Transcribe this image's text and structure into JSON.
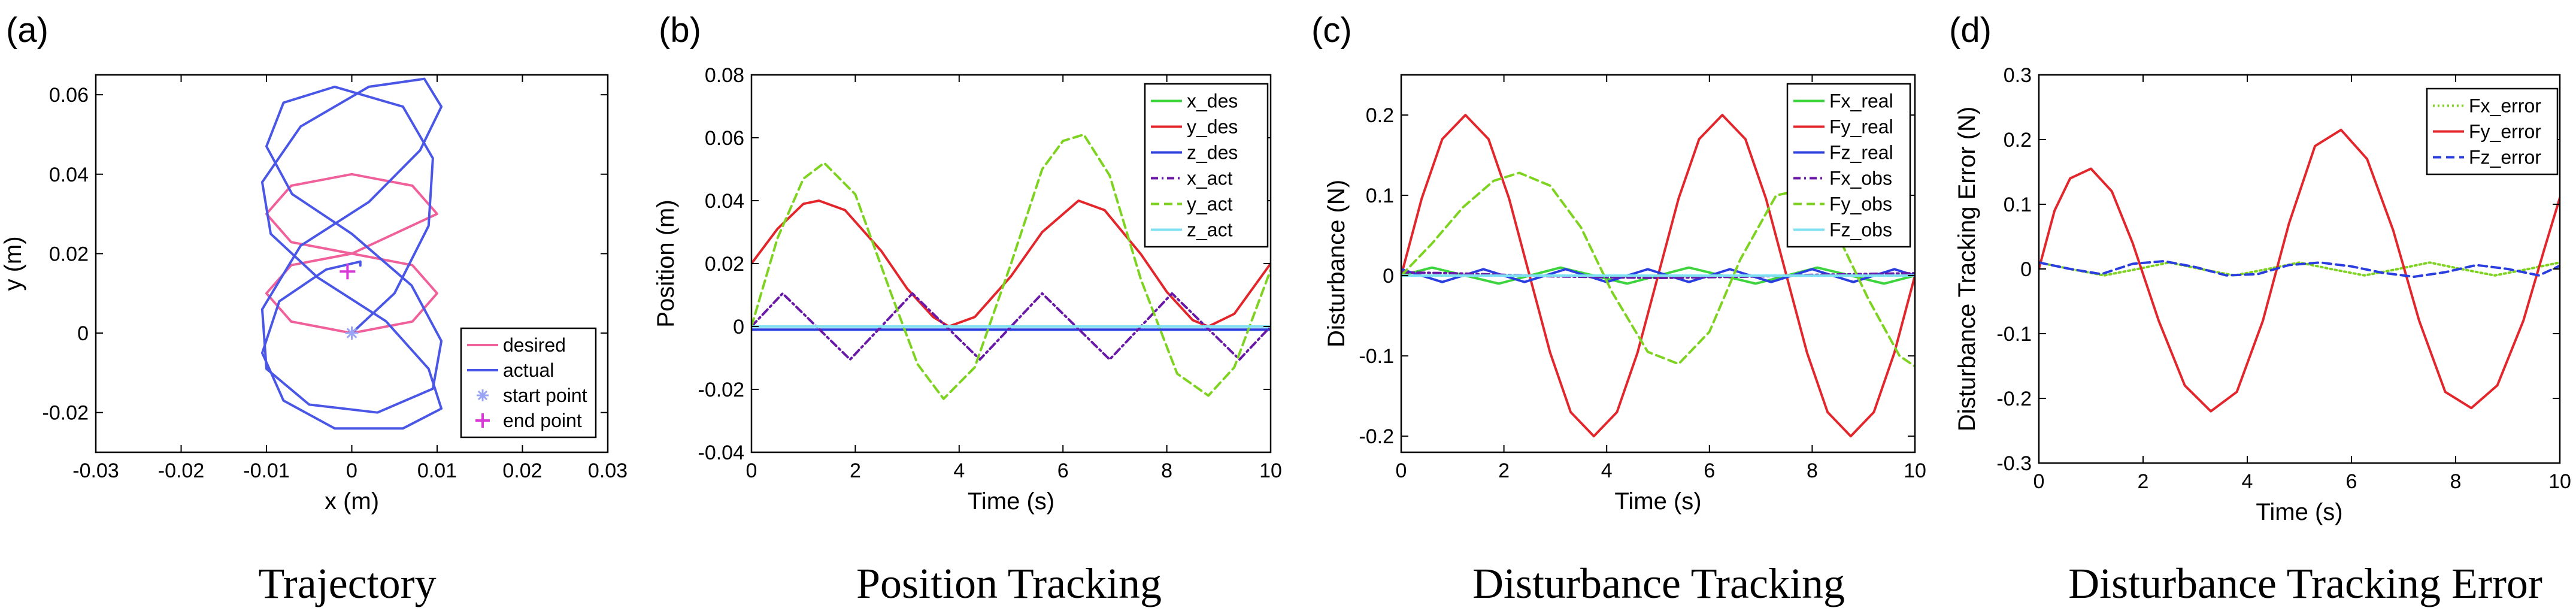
{
  "chart_data": [
    {
      "panel_label": "(a)",
      "caption": "Trajectory",
      "type": "line",
      "xlabel": "x (m)",
      "ylabel": "y (m)",
      "xlim": [
        -0.03,
        0.03
      ],
      "ylim": [
        -0.03,
        0.065
      ],
      "xticks": [
        -0.03,
        -0.02,
        -0.01,
        0,
        0.01,
        0.02,
        0.03
      ],
      "xtick_labels": [
        "-0.03",
        "-0.02",
        "-0.01",
        "0",
        "0.01",
        "0.02",
        "0.03"
      ],
      "yticks": [
        -0.02,
        0,
        0.02,
        0.04,
        0.06
      ],
      "ytick_labels": [
        "-0.02",
        "0",
        "0.02",
        "0.04",
        "0.06"
      ],
      "legend_position": "bottom-right",
      "series": [
        {
          "name": "desired",
          "color": "#f0609a",
          "style": "solid",
          "kind": "line",
          "x": [
            0,
            0.0071,
            0.01,
            0.0071,
            0,
            -0.0071,
            -0.01,
            -0.0071,
            0,
            0.0071,
            0.01,
            0.0071,
            0,
            -0.0071,
            -0.01,
            -0.0071,
            0
          ],
          "y": [
            0.02,
            0.0271,
            0.03,
            0.0371,
            0.04,
            0.0371,
            0.03,
            0.0229,
            0.02,
            0.0171,
            0.01,
            0.0029,
            0,
            0.0029,
            0.01,
            0.0171,
            0.02
          ]
        },
        {
          "name": "actual",
          "color": "#4a57e6",
          "style": "solid",
          "kind": "line",
          "x": [
            0,
            0.005,
            0.009,
            0.0095,
            0.006,
            -0.002,
            -0.008,
            -0.01,
            -0.007,
            0.0,
            0.007,
            0.0105,
            0.0095,
            0.003,
            -0.005,
            -0.01,
            -0.0105,
            -0.006,
            0.002,
            0.008,
            0.0105,
            0.0085,
            0.002,
            -0.006,
            -0.0105,
            -0.0095,
            -0.004,
            0.004,
            0.009,
            0.0105,
            0.006,
            -0.002,
            -0.008,
            -0.0105,
            -0.0085,
            -0.003,
            0.001,
            0.001
          ],
          "y": [
            0,
            0.01,
            0.027,
            0.044,
            0.057,
            0.062,
            0.058,
            0.047,
            0.035,
            0.025,
            0.012,
            -0.002,
            -0.014,
            -0.02,
            -0.018,
            -0.009,
            0.006,
            0.022,
            0.033,
            0.046,
            0.057,
            0.064,
            0.062,
            0.052,
            0.038,
            0.025,
            0.014,
            0.003,
            -0.009,
            -0.019,
            -0.024,
            -0.024,
            -0.017,
            -0.005,
            0.008,
            0.016,
            0.018,
            0.017
          ]
        },
        {
          "name": "start point",
          "color": "#9aa4f5",
          "kind": "marker",
          "marker": "asterisk",
          "x": [
            0
          ],
          "y": [
            0
          ]
        },
        {
          "name": "end point",
          "color": "#d83ad8",
          "kind": "marker",
          "marker": "plus",
          "x": [
            -0.0005
          ],
          "y": [
            0.0155
          ]
        }
      ]
    },
    {
      "panel_label": "(b)",
      "caption": "Position Tracking",
      "type": "line",
      "xlabel": "Time (s)",
      "ylabel": "Position (m)",
      "xlim": [
        0,
        10
      ],
      "ylim": [
        -0.04,
        0.08
      ],
      "xticks": [
        0,
        2,
        4,
        6,
        8,
        10
      ],
      "xtick_labels": [
        "0",
        "2",
        "4",
        "6",
        "8",
        "10"
      ],
      "yticks": [
        -0.04,
        -0.02,
        0,
        0.02,
        0.04,
        0.06,
        0.08
      ],
      "ytick_labels": [
        "-0.04",
        "-0.02",
        "0",
        "0.02",
        "0.04",
        "0.06",
        "0.08"
      ],
      "legend_position": "top-right",
      "series": [
        {
          "name": "x_des",
          "color": "#3dd43d",
          "style": "solid",
          "x": [
            0,
            0.8,
            1.6,
            2.4,
            3.2,
            4.0,
            4.8,
            5.6,
            6.4,
            7.2,
            8.0,
            8.8,
            9.6,
            10
          ],
          "y": [
            0,
            0,
            0,
            0,
            0,
            0,
            0,
            0,
            0,
            0,
            0,
            0,
            0,
            0
          ]
        },
        {
          "name": "y_des",
          "color": "#e3262b",
          "style": "solid",
          "x": [
            0,
            0.5,
            1.0,
            1.3,
            1.8,
            2.5,
            3.0,
            3.5,
            3.8,
            4.3,
            5.0,
            5.6,
            6.3,
            6.8,
            7.5,
            8.0,
            8.5,
            8.8,
            9.3,
            10
          ],
          "y": [
            0.02,
            0.031,
            0.039,
            0.04,
            0.037,
            0.024,
            0.012,
            0.003,
            0.0,
            0.003,
            0.016,
            0.03,
            0.04,
            0.037,
            0.023,
            0.011,
            0.002,
            0.0,
            0.004,
            0.02
          ]
        },
        {
          "name": "z_des",
          "color": "#2a3ee0",
          "style": "solid",
          "x": [
            0,
            1,
            2,
            3,
            4,
            5,
            6,
            7,
            8,
            9,
            10
          ],
          "y": [
            -0.001,
            -0.001,
            -0.001,
            -0.001,
            -0.001,
            -0.001,
            -0.001,
            -0.001,
            -0.001,
            -0.001,
            -0.001
          ]
        },
        {
          "name": "x_act",
          "color": "#6a18a8",
          "style": "dashdot",
          "x": [
            0,
            0.6,
            1.25,
            1.9,
            2.5,
            3.1,
            3.75,
            4.4,
            5.0,
            5.6,
            6.25,
            6.9,
            7.5,
            8.1,
            8.75,
            9.4,
            10
          ],
          "y": [
            0,
            0.0105,
            0,
            -0.0105,
            0,
            0.0105,
            0,
            -0.0105,
            0,
            0.0105,
            0,
            -0.0105,
            0,
            0.0105,
            0,
            -0.0105,
            0
          ]
        },
        {
          "name": "y_act",
          "color": "#7ed321",
          "style": "dashed",
          "x": [
            0,
            0.5,
            1.0,
            1.4,
            2.0,
            2.7,
            3.2,
            3.7,
            4.3,
            5.0,
            5.6,
            6.0,
            6.4,
            6.9,
            7.5,
            8.2,
            8.8,
            9.3,
            10
          ],
          "y": [
            0,
            0.028,
            0.047,
            0.052,
            0.042,
            0.01,
            -0.012,
            -0.023,
            -0.013,
            0.02,
            0.05,
            0.059,
            0.061,
            0.048,
            0.015,
            -0.015,
            -0.022,
            -0.013,
            0.018
          ]
        },
        {
          "name": "z_act",
          "color": "#7fe0f2",
          "style": "solid",
          "x": [
            0,
            1,
            2,
            3,
            4,
            5,
            6,
            7,
            8,
            9,
            10
          ],
          "y": [
            0,
            0,
            0,
            0,
            0,
            0,
            0,
            0,
            0,
            0,
            0
          ]
        }
      ]
    },
    {
      "panel_label": "(c)",
      "caption": "Disturbance Tracking",
      "type": "line",
      "xlabel": "Time (s)",
      "ylabel": "Disturbance (N)",
      "xlim": [
        0,
        10
      ],
      "ylim": [
        -0.22,
        0.25
      ],
      "xticks": [
        0,
        2,
        4,
        6,
        8,
        10
      ],
      "xtick_labels": [
        "0",
        "2",
        "4",
        "6",
        "8",
        "10"
      ],
      "yticks": [
        -0.2,
        -0.1,
        0,
        0.1,
        0.2
      ],
      "ytick_labels": [
        "-0.2",
        "-0.1",
        "0",
        "0.1",
        "0.2"
      ],
      "legend_position": "top-right",
      "series": [
        {
          "name": "Fx_real",
          "color": "#3dd43d",
          "style": "solid",
          "x": [
            0,
            0.6,
            1.25,
            1.9,
            2.5,
            3.1,
            3.75,
            4.4,
            5.0,
            5.6,
            6.25,
            6.9,
            7.5,
            8.1,
            8.75,
            9.4,
            10
          ],
          "y": [
            0,
            0.01,
            0,
            -0.01,
            0,
            0.01,
            0,
            -0.01,
            0,
            0.01,
            0,
            -0.01,
            0,
            0.01,
            0,
            -0.01,
            0
          ]
        },
        {
          "name": "Fy_real",
          "color": "#e3262b",
          "style": "solid",
          "x": [
            0,
            0.4,
            0.8,
            1.25,
            1.7,
            2.1,
            2.5,
            2.9,
            3.3,
            3.75,
            4.2,
            4.6,
            5.0,
            5.4,
            5.8,
            6.25,
            6.7,
            7.1,
            7.5,
            7.9,
            8.3,
            8.75,
            9.2,
            9.6,
            10
          ],
          "y": [
            0,
            0.096,
            0.17,
            0.2,
            0.17,
            0.096,
            0,
            -0.096,
            -0.17,
            -0.2,
            -0.17,
            -0.096,
            0,
            0.096,
            0.17,
            0.2,
            0.17,
            0.096,
            0,
            -0.096,
            -0.17,
            -0.2,
            -0.17,
            -0.096,
            0
          ]
        },
        {
          "name": "Fz_real",
          "color": "#2a3ee0",
          "style": "solid",
          "x": [
            0,
            0.4,
            0.8,
            1.2,
            1.6,
            2.0,
            2.4,
            2.8,
            3.2,
            3.6,
            4.0,
            4.4,
            4.8,
            5.2,
            5.6,
            6.0,
            6.4,
            6.8,
            7.2,
            7.6,
            8.0,
            8.4,
            8.8,
            9.2,
            9.6,
            10
          ],
          "y": [
            0.008,
            0.0,
            -0.008,
            0.0,
            0.008,
            0.0,
            -0.008,
            0.0,
            0.008,
            0.0,
            -0.008,
            0.0,
            0.008,
            0.0,
            -0.008,
            0.0,
            0.008,
            0.0,
            -0.008,
            0.0,
            0.008,
            0.0,
            -0.008,
            0.0,
            0.008,
            0.0
          ]
        },
        {
          "name": "Fx_obs",
          "color": "#6a18a8",
          "style": "dashdot",
          "x": [
            0,
            1,
            2,
            3,
            4,
            5,
            6,
            7,
            8,
            9,
            10
          ],
          "y": [
            0.004,
            0.003,
            0.001,
            -0.001,
            -0.002,
            -0.003,
            -0.002,
            -0.001,
            0.001,
            0.002,
            0.003
          ]
        },
        {
          "name": "Fy_obs",
          "color": "#7ed321",
          "style": "dashed",
          "x": [
            0,
            0.6,
            1.2,
            1.8,
            2.3,
            2.9,
            3.5,
            4.1,
            4.8,
            5.4,
            6.0,
            6.6,
            7.3,
            7.9,
            8.5,
            9.1,
            9.7,
            10
          ],
          "y": [
            0,
            0.04,
            0.085,
            0.118,
            0.128,
            0.112,
            0.06,
            -0.02,
            -0.095,
            -0.11,
            -0.07,
            0.02,
            0.1,
            0.108,
            0.05,
            -0.03,
            -0.1,
            -0.113
          ]
        },
        {
          "name": "Fz_obs",
          "color": "#7fe0f2",
          "style": "solid",
          "x": [
            0,
            1,
            2,
            3,
            4,
            5,
            6,
            7,
            8,
            9,
            10
          ],
          "y": [
            0,
            0,
            0,
            0,
            0,
            0,
            0,
            0,
            0,
            0,
            0
          ]
        }
      ]
    },
    {
      "panel_label": "(d)",
      "caption": "Disturbance Tracking Error",
      "type": "line",
      "xlabel": "Time (s)",
      "ylabel": "Disturbance Tracking Error (N)",
      "xlim": [
        0,
        10
      ],
      "ylim": [
        -0.3,
        0.3
      ],
      "xticks": [
        0,
        2,
        4,
        6,
        8,
        10
      ],
      "xtick_labels": [
        "0",
        "2",
        "4",
        "6",
        "8",
        "10"
      ],
      "yticks": [
        -0.3,
        -0.2,
        -0.1,
        0,
        0.1,
        0.2,
        0.3
      ],
      "ytick_labels": [
        "-0.3",
        "-0.2",
        "-0.1",
        "0",
        "0.1",
        "0.2",
        "0.3"
      ],
      "legend_position": "top-right",
      "series": [
        {
          "name": "Fx_error",
          "color": "#7ed321",
          "style": "dotted",
          "x": [
            0,
            0.6,
            1.25,
            1.9,
            2.5,
            3.1,
            3.75,
            4.4,
            5.0,
            5.6,
            6.25,
            6.9,
            7.5,
            8.1,
            8.75,
            9.4,
            10
          ],
          "y": [
            0.01,
            0.0,
            -0.01,
            0.0,
            0.01,
            0.0,
            -0.01,
            0.0,
            0.01,
            0.0,
            -0.01,
            0.0,
            0.01,
            0.0,
            -0.01,
            0.0,
            0.01
          ]
        },
        {
          "name": "Fy_error",
          "color": "#e3262b",
          "style": "solid",
          "x": [
            0,
            0.3,
            0.6,
            1.0,
            1.4,
            1.8,
            2.3,
            2.8,
            3.3,
            3.8,
            4.3,
            4.8,
            5.3,
            5.8,
            6.3,
            6.8,
            7.3,
            7.8,
            8.3,
            8.8,
            9.3,
            9.7,
            10
          ],
          "y": [
            0.0,
            0.09,
            0.14,
            0.155,
            0.12,
            0.04,
            -0.08,
            -0.18,
            -0.22,
            -0.19,
            -0.08,
            0.07,
            0.19,
            0.215,
            0.17,
            0.06,
            -0.08,
            -0.19,
            -0.215,
            -0.18,
            -0.08,
            0.03,
            0.11
          ]
        },
        {
          "name": "Fz_error",
          "color": "#2a3ee0",
          "style": "dashed",
          "x": [
            0,
            0.6,
            1.2,
            1.8,
            2.4,
            3.0,
            3.6,
            4.2,
            4.8,
            5.4,
            6.0,
            6.6,
            7.2,
            7.8,
            8.4,
            9.0,
            9.6,
            10
          ],
          "y": [
            0.01,
            0.0,
            -0.008,
            0.008,
            0.012,
            0.003,
            -0.01,
            -0.008,
            0.006,
            0.01,
            0.004,
            -0.006,
            -0.012,
            -0.005,
            0.006,
            0.0,
            -0.01,
            0.005
          ]
        }
      ]
    }
  ]
}
